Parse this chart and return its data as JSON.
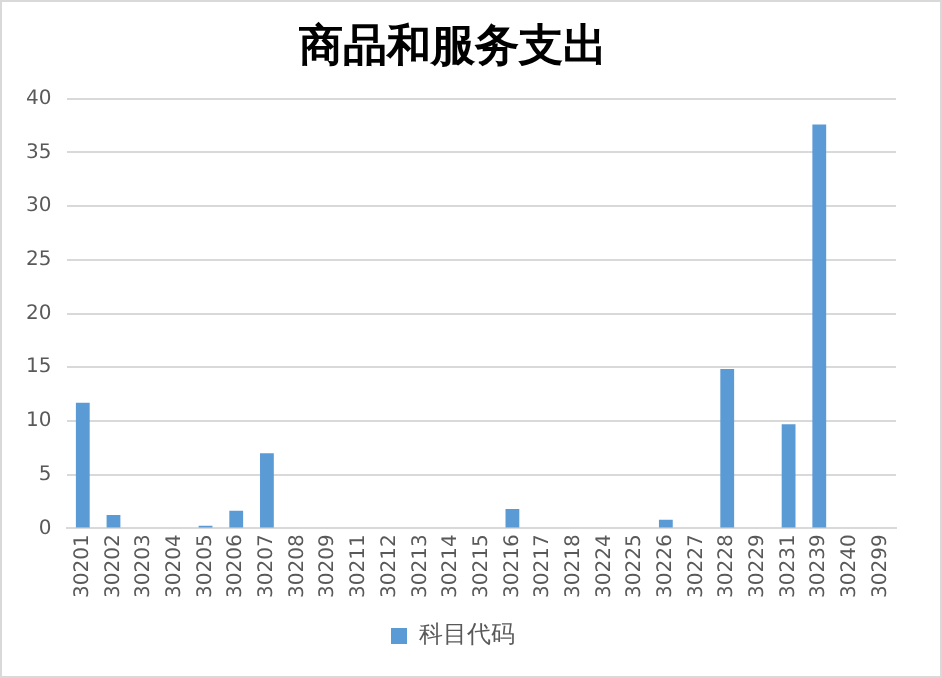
{
  "chart_data": {
    "type": "bar",
    "title": "商品和服务支出",
    "categories": [
      "30201",
      "30202",
      "30203",
      "30204",
      "30205",
      "30206",
      "30207",
      "30208",
      "30209",
      "30211",
      "30212",
      "30213",
      "30214",
      "30215",
      "30216",
      "30217",
      "30218",
      "30224",
      "30225",
      "30226",
      "30227",
      "30228",
      "30229",
      "30231",
      "30239",
      "30240",
      "30299"
    ],
    "series": [
      {
        "name": "科目代码",
        "color": "#5b9bd5",
        "values": [
          11.7,
          1.25,
          0,
          0,
          0.25,
          1.65,
          7.0,
          0,
          0,
          0,
          0,
          0,
          0,
          0,
          1.8,
          0,
          0,
          0,
          0,
          0.8,
          0,
          14.85,
          0,
          9.7,
          37.6,
          0,
          0
        ]
      }
    ],
    "ylim": [
      0,
      40
    ],
    "yticks": [
      0,
      5,
      10,
      15,
      20,
      25,
      30,
      35,
      40
    ],
    "grid": "y",
    "legend": "bottom"
  }
}
